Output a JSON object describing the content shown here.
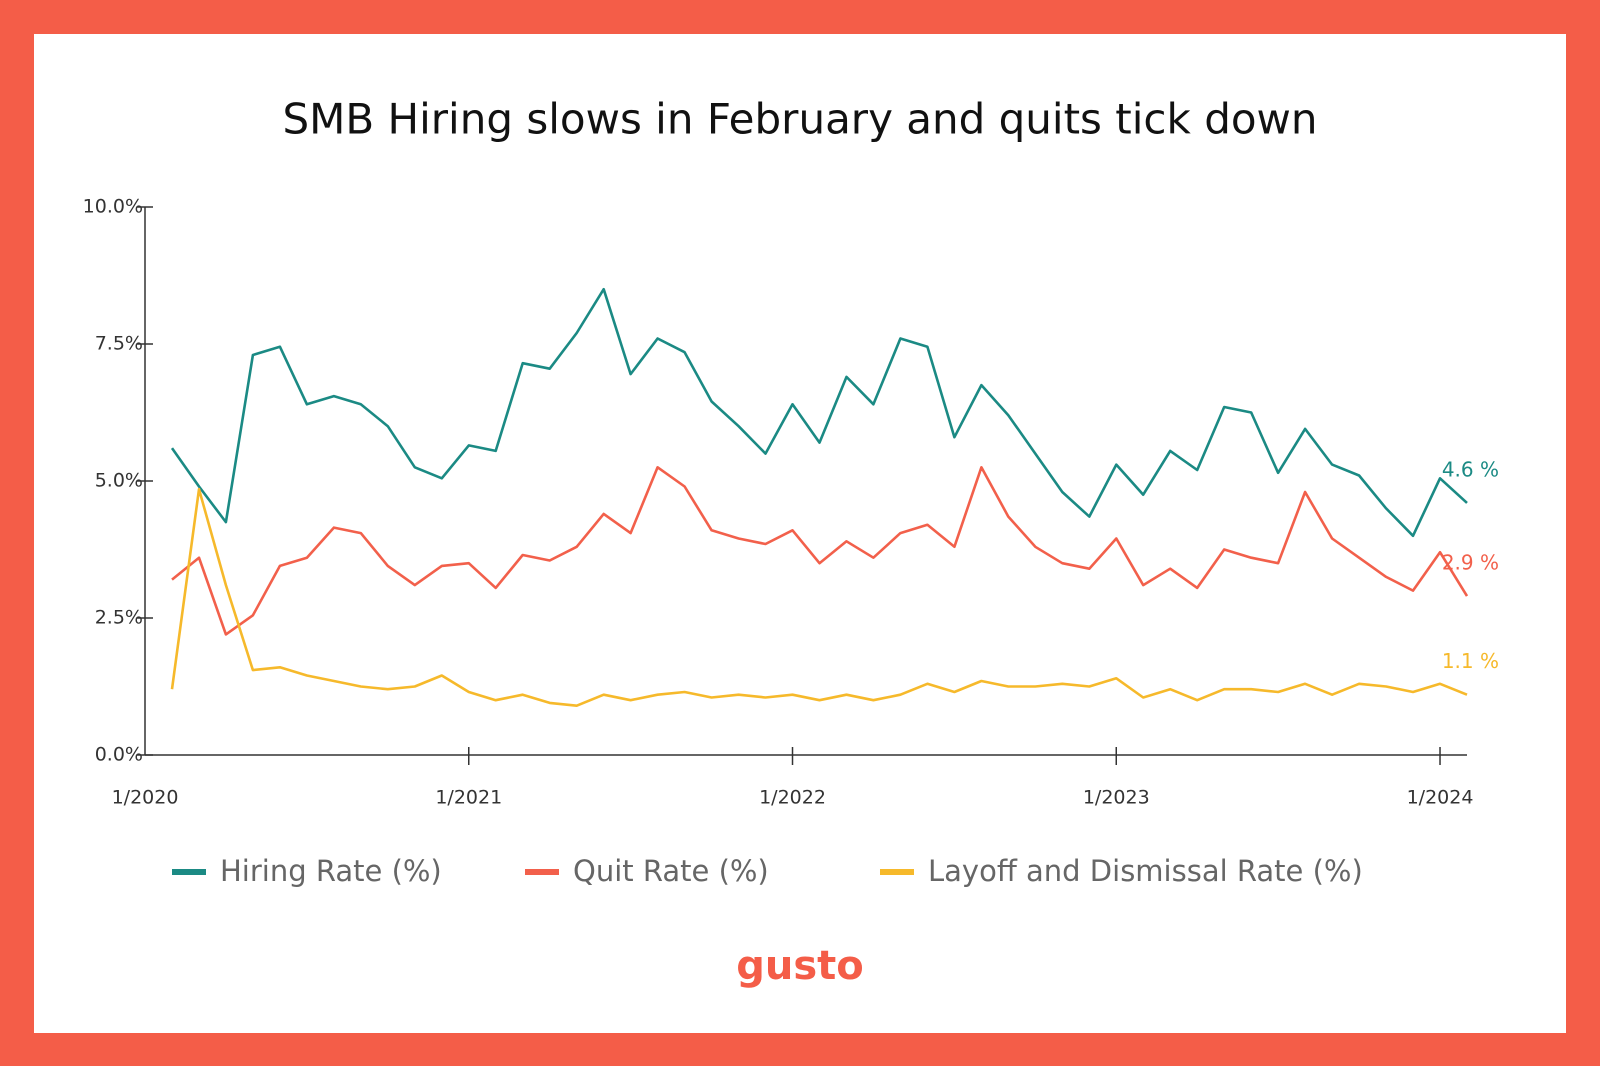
{
  "chart_data": {
    "type": "line",
    "title": "SMB Hiring slows in February and quits tick down",
    "brand": "gusto",
    "x": [
      "2/2020",
      "3/2020",
      "4/2020",
      "5/2020",
      "6/2020",
      "7/2020",
      "8/2020",
      "9/2020",
      "10/2020",
      "11/2020",
      "12/2020",
      "1/2021",
      "2/2021",
      "3/2021",
      "4/2021",
      "5/2021",
      "6/2021",
      "7/2021",
      "8/2021",
      "9/2021",
      "10/2021",
      "11/2021",
      "12/2021",
      "1/2022",
      "2/2022",
      "3/2022",
      "4/2022",
      "5/2022",
      "6/2022",
      "7/2022",
      "8/2022",
      "9/2022",
      "10/2022",
      "11/2022",
      "12/2022",
      "1/2023",
      "2/2023",
      "3/2023",
      "4/2023",
      "5/2023",
      "6/2023",
      "7/2023",
      "8/2023",
      "9/2023",
      "10/2023",
      "11/2023",
      "12/2023",
      "1/2024",
      "2/2024"
    ],
    "xlim": [
      "1/2020",
      "2/2024"
    ],
    "xticks": [
      "1/2020",
      "1/2021",
      "1/2022",
      "1/2023",
      "1/2024"
    ],
    "ylim": [
      0,
      10
    ],
    "yticks": [
      {
        "value": 0,
        "label": "0.0%"
      },
      {
        "value": 2.5,
        "label": "2.5%"
      },
      {
        "value": 5,
        "label": "5.0%"
      },
      {
        "value": 7.5,
        "label": "7.5%"
      },
      {
        "value": 10,
        "label": "10.0%"
      }
    ],
    "series": [
      {
        "name": "Hiring Rate (%)",
        "color": "#1b8a84",
        "end_label": "4.6 %",
        "values": [
          5.6,
          4.9,
          4.25,
          7.3,
          7.45,
          6.4,
          6.55,
          6.4,
          6.0,
          5.25,
          5.05,
          5.65,
          5.55,
          7.15,
          7.05,
          7.7,
          8.5,
          6.95,
          7.6,
          7.35,
          6.45,
          6.0,
          5.5,
          6.4,
          5.7,
          6.9,
          6.4,
          7.6,
          7.45,
          5.8,
          6.75,
          6.2,
          5.5,
          4.8,
          4.35,
          5.3,
          4.75,
          5.55,
          5.2,
          6.35,
          6.25,
          5.15,
          5.95,
          5.3,
          5.1,
          4.5,
          4.0,
          5.05,
          4.6
        ]
      },
      {
        "name": "Quit Rate (%)",
        "color": "#f2604b",
        "end_label": "2.9 %",
        "values": [
          3.2,
          3.6,
          2.2,
          2.55,
          3.45,
          3.6,
          4.15,
          4.05,
          3.45,
          3.1,
          3.45,
          3.5,
          3.05,
          3.65,
          3.55,
          3.8,
          4.4,
          4.05,
          5.25,
          4.9,
          4.1,
          3.95,
          3.85,
          4.1,
          3.5,
          3.9,
          3.6,
          4.05,
          4.2,
          3.8,
          5.25,
          4.35,
          3.8,
          3.5,
          3.4,
          3.95,
          3.1,
          3.4,
          3.05,
          3.75,
          3.6,
          3.5,
          4.8,
          3.95,
          3.6,
          3.25,
          3.0,
          3.7,
          2.9
        ]
      },
      {
        "name": "Layoff and Dismissal Rate (%)",
        "color": "#f6b92b",
        "end_label": "1.1 %",
        "values": [
          1.2,
          4.85,
          3.1,
          1.55,
          1.6,
          1.45,
          1.35,
          1.25,
          1.2,
          1.25,
          1.45,
          1.15,
          1.0,
          1.1,
          0.95,
          0.9,
          1.1,
          1.0,
          1.1,
          1.15,
          1.05,
          1.1,
          1.05,
          1.1,
          1.0,
          1.1,
          1.0,
          1.1,
          1.3,
          1.15,
          1.35,
          1.25,
          1.25,
          1.3,
          1.25,
          1.4,
          1.05,
          1.2,
          1.0,
          1.2,
          1.2,
          1.15,
          1.3,
          1.1,
          1.3,
          1.25,
          1.15,
          1.3,
          1.1
        ]
      }
    ]
  }
}
